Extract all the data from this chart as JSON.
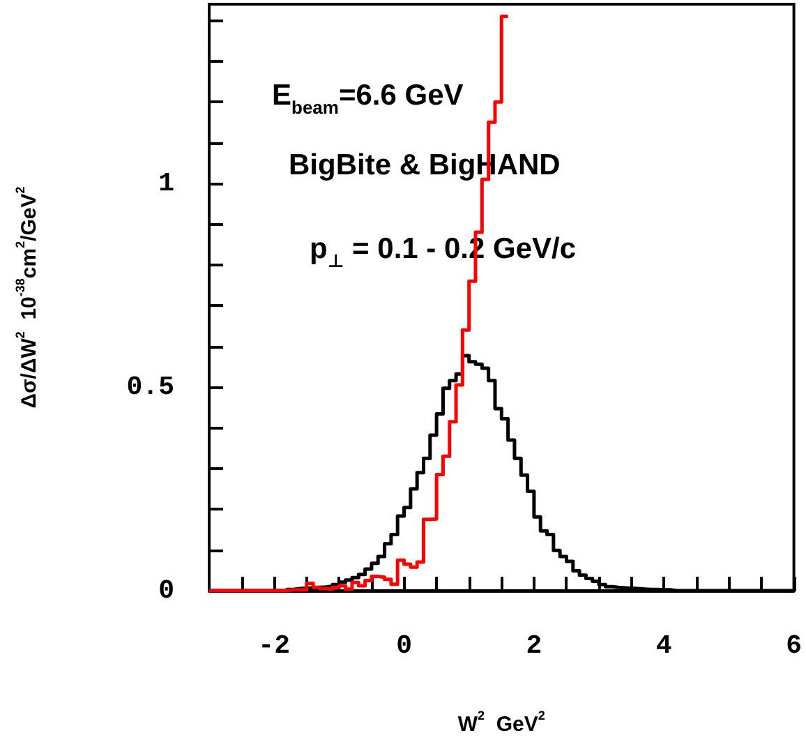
{
  "chart_data": {
    "type": "histogram",
    "xlabel": "W$^{2}$  GeV$^{2}$",
    "ylabel": "Δσ/ΔW$^{2}$  10$^{-38}$cm$^{2}$/GeV$^{2}$",
    "annotations": [
      "E$_{beam}$=6.6 GeV",
      "BigBite & BigHAND",
      "p$_{⊥}$ = 0.1 - 0.2 GeV/c"
    ],
    "bins": [
      -3,
      -2.9,
      -2.8,
      -2.7,
      -2.6,
      -2.5,
      -2.4,
      -2.3,
      -2.2,
      -2.1,
      -2,
      -1.9,
      -1.8,
      -1.7,
      -1.6,
      -1.5,
      -1.4,
      -1.3,
      -1.2,
      -1.1,
      -1,
      -0.9,
      -0.8,
      -0.7,
      -0.6,
      -0.5,
      -0.4,
      -0.3,
      -0.2,
      -0.1,
      0,
      0.1,
      0.2,
      0.3,
      0.4,
      0.5,
      0.6,
      0.7,
      0.8,
      0.9,
      1,
      1.1,
      1.2,
      1.3,
      1.4,
      1.5,
      1.6,
      1.7,
      1.8,
      1.9,
      2,
      2.1,
      2.2,
      2.3,
      2.4,
      2.5,
      2.6,
      2.7,
      2.8,
      2.9,
      3,
      3.1,
      3.2,
      3.3,
      3.4,
      3.5,
      3.6,
      3.7,
      3.8,
      3.9,
      4,
      4.1,
      4.2,
      4.3,
      4.4,
      4.5,
      4.6,
      4.7,
      4.8,
      4.9,
      5,
      5.1,
      5.2,
      5.3,
      5.4,
      5.5,
      5.6,
      5.7,
      5.8,
      5.9,
      6
    ],
    "series": [
      {
        "color": "#000000",
        "values": [
          0,
          0,
          0,
          0,
          0,
          0,
          0,
          0,
          0,
          0,
          0,
          0,
          0.003,
          0.005,
          0.006,
          0.007,
          0.008,
          0.009,
          0.011,
          0.015,
          0.021,
          0.026,
          0.032,
          0.04,
          0.053,
          0.067,
          0.084,
          0.115,
          0.138,
          0.183,
          0.204,
          0.25,
          0.29,
          0.325,
          0.382,
          0.434,
          0.497,
          0.516,
          0.532,
          0.577,
          0.562,
          0.556,
          0.546,
          0.516,
          0.447,
          0.422,
          0.37,
          0.325,
          0.284,
          0.244,
          0.181,
          0.147,
          0.138,
          0.099,
          0.084,
          0.072,
          0.049,
          0.038,
          0.03,
          0.023,
          0.015,
          0.01,
          0.008,
          0.007,
          0.006,
          0.005,
          0.004,
          0.003,
          0.003,
          0.002,
          0.002,
          0,
          0,
          0,
          0,
          0,
          0,
          0,
          0,
          0,
          0,
          0,
          0,
          0,
          0,
          0,
          0,
          0,
          0,
          0
        ]
      },
      {
        "color": "#ff0000",
        "bins": [
          -3,
          -2.9,
          -2.8,
          -2.7,
          -2.6,
          -2.5,
          -2.4,
          -2.3,
          -2.2,
          -2.1,
          -2,
          -1.9,
          -1.8,
          -1.7,
          -1.6,
          -1.5,
          -1.4,
          -1.3,
          -1.2,
          -1.1,
          -1,
          -0.9,
          -0.8,
          -0.7,
          -0.6,
          -0.5,
          -0.4,
          -0.3,
          -0.2,
          -0.1,
          0,
          0.1,
          0.2,
          0.3,
          0.4,
          0.5,
          0.6,
          0.7,
          0.8,
          0.9,
          1,
          1.1,
          1.2,
          1.3,
          1.4,
          1.5,
          1.6
        ],
        "values": [
          0,
          0,
          0,
          0,
          0,
          0,
          0,
          0,
          0,
          0,
          0,
          0,
          0.002,
          0.002,
          0.002,
          0.018,
          0.008,
          0.005,
          0.004,
          0.008,
          0.012,
          0.004,
          0.02,
          0.012,
          0.025,
          0.035,
          0.033,
          0.028,
          0.016,
          0.075,
          0.065,
          0.058,
          0.07,
          0.175,
          0.176,
          0.285,
          0.33,
          0.415,
          0.505,
          0.64,
          0.76,
          0.88,
          1.01,
          1.15,
          1.2,
          1.41
        ]
      }
    ],
    "xlim": [
      -3,
      6
    ],
    "ylim": [
      0,
      1.44
    ],
    "xticks": [
      {
        "value": -3,
        "label": null
      },
      {
        "value": -2.5,
        "label": null
      },
      -2,
      {
        "value": -1.5,
        "label": null
      },
      {
        "value": -1,
        "label": null
      },
      {
        "value": -0.5,
        "label": null
      },
      0,
      {
        "value": 0.5,
        "label": null
      },
      {
        "value": 1,
        "label": null
      },
      {
        "value": 1.5,
        "label": null
      },
      2,
      {
        "value": 2.5,
        "label": null
      },
      {
        "value": 3,
        "label": null
      },
      {
        "value": 3.5,
        "label": null
      },
      4,
      {
        "value": 4.5,
        "label": null
      },
      {
        "value": 5,
        "label": null
      },
      {
        "value": 5.5,
        "label": null
      },
      6
    ],
    "yticks": [
      0,
      {
        "value": 0.1,
        "label": null
      },
      {
        "value": 0.2,
        "label": null
      },
      {
        "value": 0.3,
        "label": null
      },
      {
        "value": 0.4,
        "label": null
      },
      0.5,
      {
        "value": 0.6,
        "label": null
      },
      {
        "value": 0.7,
        "label": null
      },
      {
        "value": 0.8,
        "label": null
      },
      {
        "value": 0.9,
        "label": null
      },
      1,
      {
        "value": 1.1,
        "label": null
      },
      {
        "value": 1.2,
        "label": null
      },
      {
        "value": 1.3,
        "label": null
      },
      {
        "value": 1.4,
        "label": null
      }
    ]
  }
}
